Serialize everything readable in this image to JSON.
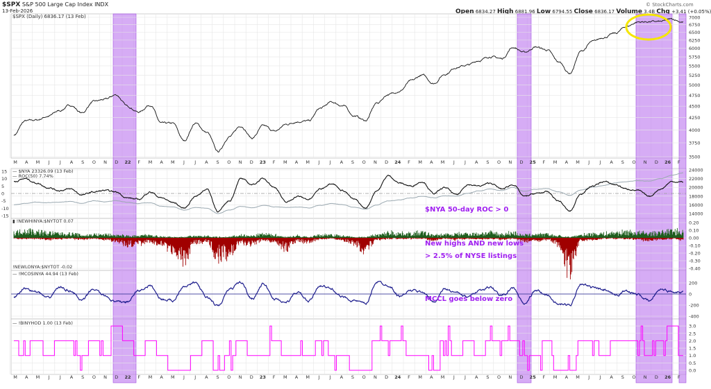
{
  "header": {
    "symbol": "$SPX",
    "name": "S&P 500 Large Cap Index",
    "exchange": "INDX",
    "date": "13-Feb-2026",
    "watermark": "© StockCharts.com",
    "open_label": "Open",
    "open": "6834.27",
    "high_label": "High",
    "high": "6881.96",
    "low_label": "Low",
    "low": "6794.55",
    "close_label": "Close",
    "close": "6836.17",
    "volume_label": "Volume",
    "volume": "3.4B",
    "chg_label": "Chg",
    "chg": "+3.41 (+0.05%)"
  },
  "chart_data": [
    {
      "type": "line",
      "legend": "$SPX (Daily) 6836.17 (13 Feb)",
      "scale": "log",
      "ylim": [
        3500,
        7000
      ],
      "yticks": [
        "7000",
        "6750",
        "6500",
        "6250",
        "6000",
        "5750",
        "5500",
        "5250",
        "5000",
        "4750",
        "4500",
        "4250",
        "4000",
        "3750",
        "3500"
      ],
      "x": [
        "M",
        "A",
        "M",
        "J",
        "J",
        "A",
        "S",
        "O",
        "N",
        "D",
        "22",
        "F",
        "M",
        "A",
        "M",
        "J",
        "J",
        "A",
        "S",
        "O",
        "N",
        "D",
        "23",
        "F",
        "M",
        "A",
        "M",
        "J",
        "J",
        "A",
        "S",
        "O",
        "N",
        "D",
        "24",
        "F",
        "M",
        "A",
        "M",
        "J",
        "J",
        "A",
        "S",
        "O",
        "N",
        "D",
        "25",
        "F",
        "M",
        "A",
        "M",
        "J",
        "J",
        "A",
        "S",
        "O",
        "N",
        "D",
        "26",
        "F"
      ],
      "values": [
        3900,
        4180,
        4200,
        4280,
        4400,
        4520,
        4350,
        4600,
        4650,
        4760,
        4500,
        4370,
        4530,
        4130,
        4130,
        3790,
        4130,
        3950,
        3590,
        3870,
        4080,
        3840,
        4080,
        3970,
        4110,
        4170,
        4180,
        4450,
        4590,
        4510,
        4290,
        4190,
        4570,
        4770,
        4850,
        5100,
        5250,
        5040,
        5280,
        5460,
        5520,
        5650,
        5760,
        5700,
        6030,
        5880,
        6040,
        5950,
        5610,
        5300,
        5910,
        6200,
        6340,
        6460,
        6690,
        6840,
        6850,
        6850,
        6940,
        6836
      ],
      "highlighted_months": [
        "D",
        "22",
        "D",
        "O",
        "N",
        "F"
      ],
      "grid": true
    },
    {
      "type": "line",
      "series": [
        {
          "name": "$NYA 23326.09 (13 Feb)",
          "color": "#9aa8b0",
          "yticks": [
            "24000",
            "22000",
            "20000",
            "18000",
            "16000",
            "14000"
          ],
          "ylim": [
            14000,
            24000
          ],
          "values": [
            16000,
            16300,
            16600,
            16500,
            16600,
            16800,
            16300,
            16900,
            16700,
            17000,
            16600,
            16300,
            16500,
            15700,
            15500,
            14800,
            15400,
            15200,
            14000,
            14800,
            15600,
            15300,
            15900,
            15500,
            15400,
            15500,
            15300,
            15900,
            16300,
            16000,
            15400,
            15000,
            16000,
            16900,
            17100,
            17600,
            18000,
            17600,
            18100,
            18000,
            18600,
            19200,
            19600,
            19300,
            20000,
            19100,
            19600,
            19700,
            19000,
            18200,
            19400,
            20000,
            20400,
            21000,
            21300,
            21500,
            21400,
            22000,
            22800,
            23326
          ]
        },
        {
          "name": "ROC(50) 7.74%",
          "color": "#111111",
          "yticks": [
            "15",
            "10",
            "5",
            "0",
            "-5",
            "-10",
            "-15"
          ],
          "ylim": [
            -15,
            15
          ],
          "values": [
            8,
            10,
            7,
            4,
            2,
            3,
            -1,
            1,
            2,
            1,
            -3,
            -4,
            1,
            -3,
            -6,
            -10,
            -2,
            3,
            -12,
            -5,
            10,
            6,
            10,
            4,
            -6,
            -2,
            -4,
            3,
            7,
            2,
            -4,
            -10,
            2,
            12,
            7,
            5,
            8,
            0,
            4,
            -1,
            6,
            5,
            7,
            3,
            6,
            -2,
            0,
            1,
            -5,
            -12,
            0,
            5,
            8,
            6,
            3,
            2,
            -2,
            3,
            8,
            7.74
          ]
        }
      ],
      "annotation": "$NYA 50-day ROC > 0"
    },
    {
      "type": "bar",
      "series": [
        {
          "name": "!NEWHINYA:$NYTOT 0.07",
          "color": "#1e5e1e",
          "values": [
            0.06,
            0.09,
            0.07,
            0.06,
            0.05,
            0.05,
            0.03,
            0.04,
            0.04,
            0.03,
            0.02,
            0.02,
            0.03,
            0.01,
            0.01,
            0.01,
            0.02,
            0.02,
            0.01,
            0.01,
            0.03,
            0.02,
            0.04,
            0.03,
            0.01,
            0.02,
            0.01,
            0.03,
            0.04,
            0.02,
            0.01,
            0.01,
            0.03,
            0.06,
            0.05,
            0.05,
            0.06,
            0.03,
            0.04,
            0.04,
            0.05,
            0.05,
            0.06,
            0.04,
            0.06,
            0.03,
            0.04,
            0.04,
            0.02,
            0.01,
            0.03,
            0.05,
            0.05,
            0.06,
            0.07,
            0.06,
            0.05,
            0.06,
            0.08,
            0.07
          ]
        },
        {
          "name": "!NEWLONYA:$NYTOT -0.02",
          "color": "#a00000",
          "values": [
            -0.01,
            -0.01,
            -0.01,
            -0.02,
            -0.01,
            -0.01,
            -0.02,
            -0.01,
            -0.02,
            -0.04,
            -0.08,
            -0.07,
            -0.04,
            -0.09,
            -0.15,
            -0.25,
            -0.06,
            -0.04,
            -0.22,
            -0.18,
            -0.05,
            -0.08,
            -0.03,
            -0.05,
            -0.12,
            -0.04,
            -0.05,
            -0.02,
            -0.01,
            -0.03,
            -0.07,
            -0.15,
            -0.02,
            -0.01,
            -0.01,
            -0.01,
            -0.01,
            -0.03,
            -0.01,
            -0.02,
            -0.01,
            -0.02,
            -0.01,
            -0.02,
            -0.01,
            -0.04,
            -0.03,
            -0.02,
            -0.08,
            -0.38,
            -0.03,
            -0.02,
            -0.01,
            -0.01,
            -0.01,
            -0.02,
            -0.03,
            -0.02,
            -0.01,
            -0.02
          ]
        }
      ],
      "yticks": [
        "0.20",
        "0.10",
        "0.00",
        "-0.10",
        "-0.20",
        "-0.30",
        "-0.40"
      ],
      "ylim": [
        -0.4,
        0.2
      ],
      "annotation": [
        "New highs AND new lows",
        "> 2.5% of NYSE listings"
      ]
    },
    {
      "type": "line",
      "series": [
        {
          "name": "!MCOSINYA 44.94 (13 Feb)",
          "color": "#1c1c8c",
          "values": [
            -60,
            100,
            40,
            -80,
            120,
            60,
            -120,
            90,
            -30,
            -150,
            -140,
            60,
            150,
            -90,
            -120,
            150,
            200,
            -60,
            -220,
            80,
            210,
            -80,
            180,
            -90,
            -150,
            30,
            -130,
            160,
            90,
            -60,
            -120,
            -180,
            220,
            160,
            -40,
            60,
            40,
            -140,
            90,
            20,
            -60,
            70,
            120,
            -30,
            100,
            -180,
            60,
            -20,
            -190,
            -200,
            190,
            110,
            70,
            -30,
            60,
            -10,
            -130,
            90,
            40,
            44.94
          ]
        }
      ],
      "yticks": [
        "200",
        "0",
        "-200",
        "-400"
      ],
      "ylim": [
        -400,
        300
      ],
      "annotation": "MCCL goes below zero"
    },
    {
      "type": "line",
      "series": [
        {
          "name": "!BINYHOD 1.00 (13 Feb)",
          "color": "#ff00ff",
          "values": [
            2,
            1,
            2,
            1,
            2,
            2,
            1,
            2,
            1,
            3,
            2,
            1,
            2,
            1,
            0,
            0,
            1,
            2,
            0,
            1,
            2,
            1,
            1,
            2,
            1,
            1,
            1,
            2,
            1,
            1,
            0,
            0,
            2,
            2,
            2,
            1,
            1,
            0,
            2,
            1,
            2,
            1,
            2,
            2,
            2,
            1,
            1,
            2,
            0,
            0,
            2,
            2,
            1,
            2,
            2,
            2,
            1,
            2,
            3,
            1
          ]
        }
      ],
      "yticks": [
        "3.0",
        "2.5",
        "2.0",
        "1.5",
        "1.0",
        "0.5",
        "0.0"
      ],
      "ylim": [
        0,
        3
      ]
    }
  ],
  "colors": {
    "highlight": "#c080f0",
    "circle": "#f5e600",
    "annotation": "#a020f0"
  }
}
